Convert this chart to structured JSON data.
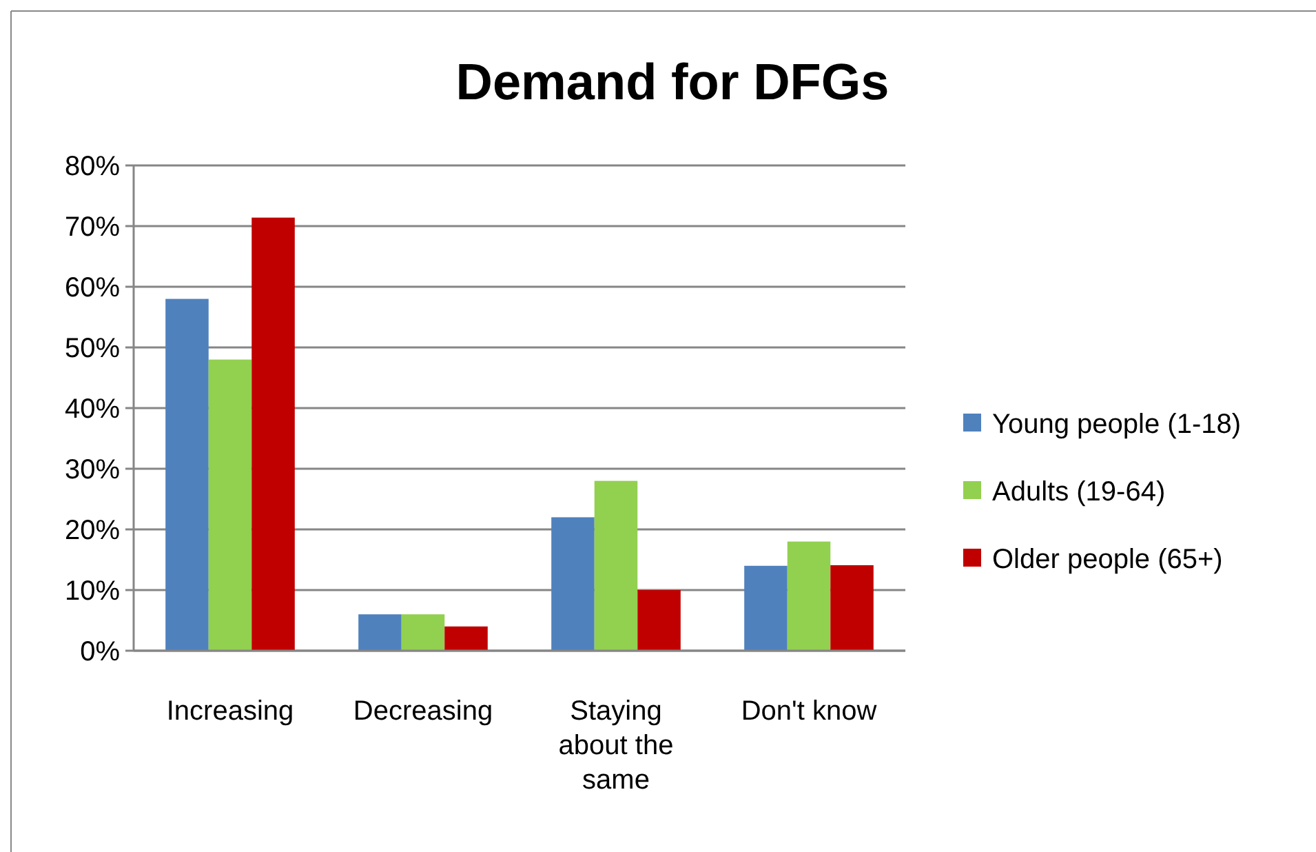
{
  "chart_data": {
    "type": "bar",
    "title": "Demand for DFGs",
    "categories": [
      "Increasing",
      "Decreasing",
      "Staying about the same",
      "Don't know"
    ],
    "series": [
      {
        "name": "Young people (1-18)",
        "color": "#4f81bd",
        "values": [
          58,
          6,
          22,
          14
        ]
      },
      {
        "name": "Adults (19-64)",
        "color": "#92d050",
        "values": [
          48,
          6,
          28,
          18
        ]
      },
      {
        "name": "Older people (65+)",
        "color": "#c00000",
        "values": [
          71.4,
          4,
          10,
          14.1
        ]
      }
    ],
    "ylim": [
      0,
      80
    ],
    "yticks": [
      {
        "value": 0,
        "label": "0%"
      },
      {
        "value": 10,
        "label": "10%"
      },
      {
        "value": 20,
        "label": "20%"
      },
      {
        "value": 30,
        "label": "30%"
      },
      {
        "value": 40,
        "label": "40%"
      },
      {
        "value": 50,
        "label": "50%"
      },
      {
        "value": 60,
        "label": "60%"
      },
      {
        "value": 70,
        "label": "70%"
      },
      {
        "value": 80,
        "label": "80%"
      }
    ],
    "grid": "y",
    "legend": "right"
  }
}
